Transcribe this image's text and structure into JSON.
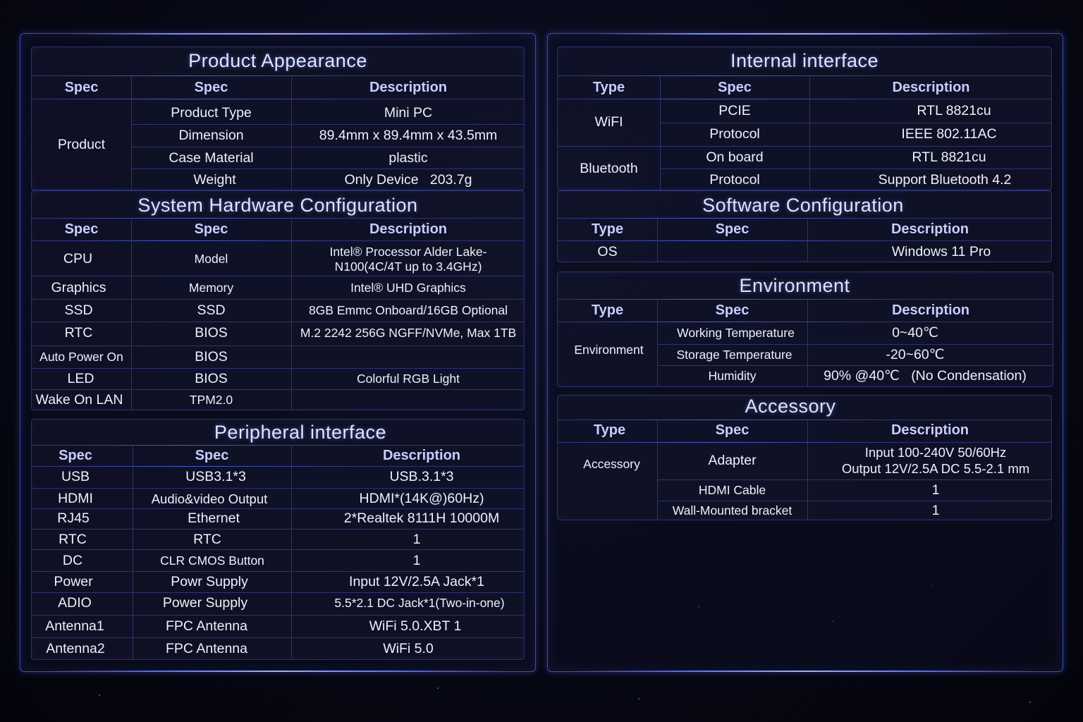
{
  "product_appearance": {
    "title": "Product Appearance",
    "headers": [
      "Spec",
      "Spec",
      "Description"
    ],
    "group": "Product",
    "rows": [
      [
        "Product Type",
        "Mini PC"
      ],
      [
        "Dimension",
        "89.4mm x 89.4mm x 43.5mm"
      ],
      [
        "Case Material",
        "plastic"
      ],
      [
        "Weight",
        "Only Device   203.7g"
      ]
    ]
  },
  "system_hardware": {
    "title": "System Hardware Configuration",
    "headers": [
      "Spec",
      "Spec",
      "Description"
    ],
    "rows": [
      [
        "CPU",
        "Model",
        "Intel® Processor Alder Lake-\nN100(4C/4T up to 3.4GHz)"
      ],
      [
        "Graphics",
        "Memory",
        "Intel® UHD Graphics"
      ],
      [
        "SSD",
        "SSD",
        "8GB Emmc Onboard/16GB Optional"
      ],
      [
        "RTC",
        "BIOS",
        "M.2 2242 256G NGFF/NVMe, Max 1TB"
      ],
      [
        "Auto Power On",
        "BIOS",
        ""
      ],
      [
        "LED",
        "BIOS",
        "Colorful RGB Light"
      ],
      [
        "Wake On LAN",
        "TPM2.0",
        ""
      ]
    ]
  },
  "peripheral": {
    "title": "Peripheral interface",
    "headers": [
      "Spec",
      "Spec",
      "Description"
    ],
    "rows": [
      [
        "USB",
        "USB3.1*3",
        "USB.3.1*3"
      ],
      [
        "HDMI",
        "Audio&video Output",
        "HDMI*(14K@)60Hz)"
      ],
      [
        "RJ45",
        "Ethernet",
        "2*Realtek 8111H 10000M"
      ],
      [
        "RTC",
        "RTC",
        "1"
      ],
      [
        "DC",
        "CLR CMOS Button",
        "1"
      ],
      [
        "Power",
        "Powr Supply",
        "Input 12V/2.5A Jack*1"
      ],
      [
        "ADIO",
        "Power Supply",
        "5.5*2.1 DC Jack*1(Two-in-one)"
      ],
      [
        "Antenna1",
        "FPC Antenna",
        "WiFi 5.0.XBT 1"
      ],
      [
        "Antenna2",
        "FPC Antenna",
        "WiFi 5.0"
      ]
    ]
  },
  "internal": {
    "title": "Internal interface",
    "headers": [
      "Type",
      "Spec",
      "Description"
    ],
    "groups": [
      "WiFI",
      "Bluetooth"
    ],
    "rows": [
      [
        "PCIE",
        "RTL 8821cu"
      ],
      [
        "Protocol",
        "IEEE 802.11AC"
      ],
      [
        "On board",
        "RTL 8821cu"
      ],
      [
        "Protocol",
        "Support Bluetooth 4.2"
      ]
    ]
  },
  "software": {
    "title": "Software Configuration",
    "headers": [
      "Type",
      "Spec",
      "Description"
    ],
    "rows": [
      [
        "OS",
        "",
        "Windows 11 Pro"
      ]
    ]
  },
  "environment": {
    "title": "Environment",
    "headers": [
      "Type",
      "Spec",
      "Description"
    ],
    "group": "Environment",
    "rows": [
      [
        "Working Temperature",
        "0~40℃"
      ],
      [
        "Storage Temperature",
        "-20~60℃"
      ],
      [
        "Humidity",
        "90% @40℃   (No Condensation)"
      ]
    ]
  },
  "accessory": {
    "title": "Accessory",
    "headers": [
      "Type",
      "Spec",
      "Description"
    ],
    "group": "Accessory",
    "rows": [
      [
        "Adapter",
        "Input 100-240V 50/60Hz\nOutput 12V/2.5A DC 5.5-2.1 mm"
      ],
      [
        "HDMI Cable",
        "1"
      ],
      [
        "Wall-Mounted bracket",
        "1"
      ]
    ]
  }
}
